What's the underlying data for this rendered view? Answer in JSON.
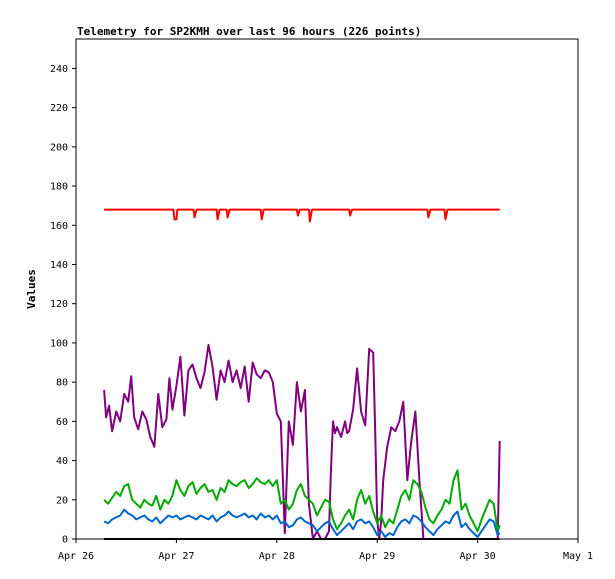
{
  "chart_data": {
    "type": "line",
    "title": "Telemetry for SP2KMH over last 96 hours (226 points)",
    "xlabel": "",
    "ylabel": "Values",
    "ylim": [
      0,
      255
    ],
    "yticks": [
      0,
      20,
      40,
      60,
      80,
      100,
      120,
      140,
      160,
      180,
      200,
      220,
      240
    ],
    "xlim": [
      0,
      5
    ],
    "xticks": [
      0,
      1,
      2,
      3,
      4,
      5
    ],
    "xtick_labels": [
      "Apr 26",
      "Apr 27",
      "Apr 28",
      "Apr 29",
      "Apr 30",
      "May 1"
    ],
    "grid": false,
    "legend": "none",
    "series": [
      {
        "color": "#ff0000",
        "x": [
          0.28,
          0.97,
          0.98,
          1.0,
          1.01,
          1.17,
          1.18,
          1.2,
          1.4,
          1.41,
          1.43,
          1.5,
          1.51,
          1.53,
          1.84,
          1.85,
          1.87,
          2.2,
          2.21,
          2.23,
          2.32,
          2.33,
          2.35,
          2.72,
          2.73,
          2.75,
          3.5,
          3.51,
          3.53,
          3.67,
          3.68,
          3.7,
          4.22
        ],
        "y": [
          168,
          168,
          163,
          163,
          168,
          168,
          164,
          168,
          168,
          163,
          168,
          168,
          164,
          168,
          168,
          163,
          168,
          168,
          165,
          168,
          168,
          162,
          168,
          168,
          165,
          168,
          168,
          164,
          168,
          168,
          163,
          168,
          168
        ]
      },
      {
        "color": "#800080",
        "x": [
          0.28,
          0.3,
          0.33,
          0.36,
          0.4,
          0.44,
          0.48,
          0.52,
          0.55,
          0.58,
          0.62,
          0.66,
          0.7,
          0.74,
          0.78,
          0.82,
          0.86,
          0.9,
          0.93,
          0.96,
          1.0,
          1.04,
          1.08,
          1.12,
          1.16,
          1.2,
          1.24,
          1.28,
          1.32,
          1.36,
          1.4,
          1.44,
          1.48,
          1.52,
          1.56,
          1.6,
          1.64,
          1.68,
          1.72,
          1.76,
          1.8,
          1.84,
          1.88,
          1.92,
          1.96,
          2.0,
          2.04,
          2.08,
          2.12,
          2.16,
          2.2,
          2.24,
          2.28,
          2.32,
          2.36,
          2.4,
          2.44,
          2.48,
          2.52,
          2.54,
          2.56,
          2.58,
          2.6,
          2.64,
          2.68,
          2.7,
          2.72,
          2.76,
          2.8,
          2.84,
          2.88,
          2.92,
          2.96,
          2.98,
          3.0,
          3.02,
          3.04,
          3.06,
          3.1,
          3.14,
          3.18,
          3.22,
          3.26,
          3.3,
          3.34,
          3.38,
          3.42,
          3.46,
          3.5,
          3.54,
          3.58,
          3.6,
          3.62,
          3.66,
          3.7,
          3.74,
          3.78,
          3.82,
          3.86,
          3.9,
          3.92,
          3.94,
          3.98,
          4.02,
          4.06,
          4.1,
          4.14,
          4.18,
          4.2,
          4.22
        ],
        "y": [
          76,
          62,
          68,
          55,
          65,
          60,
          74,
          70,
          83,
          62,
          56,
          65,
          61,
          52,
          47,
          74,
          57,
          61,
          82,
          66,
          78,
          93,
          63,
          86,
          89,
          82,
          77,
          85,
          99,
          88,
          71,
          86,
          80,
          91,
          80,
          86,
          77,
          88,
          70,
          90,
          84,
          82,
          86,
          85,
          80,
          64,
          60,
          3,
          60,
          48,
          80,
          65,
          76,
          18,
          0,
          4,
          0,
          0,
          4,
          36,
          60,
          54,
          57,
          52,
          60,
          54,
          55,
          66,
          87,
          65,
          58,
          97,
          95,
          55,
          10,
          0,
          9,
          30,
          47,
          57,
          55,
          60,
          70,
          30,
          50,
          65,
          30,
          0,
          0,
          0,
          0,
          0,
          0,
          0,
          0,
          0,
          0,
          0,
          0,
          0,
          0,
          0,
          0,
          0,
          0,
          0,
          0,
          0,
          0,
          50
        ]
      },
      {
        "color": "#00aa00",
        "x": [
          0.28,
          0.32,
          0.36,
          0.4,
          0.44,
          0.48,
          0.52,
          0.56,
          0.6,
          0.64,
          0.68,
          0.72,
          0.76,
          0.8,
          0.84,
          0.88,
          0.92,
          0.96,
          1.0,
          1.04,
          1.08,
          1.12,
          1.16,
          1.2,
          1.24,
          1.28,
          1.32,
          1.36,
          1.4,
          1.44,
          1.48,
          1.52,
          1.56,
          1.6,
          1.64,
          1.68,
          1.72,
          1.76,
          1.8,
          1.84,
          1.88,
          1.92,
          1.96,
          2.0,
          2.04,
          2.08,
          2.12,
          2.16,
          2.2,
          2.24,
          2.28,
          2.32,
          2.36,
          2.4,
          2.44,
          2.48,
          2.52,
          2.56,
          2.6,
          2.64,
          2.68,
          2.72,
          2.76,
          2.8,
          2.84,
          2.88,
          2.92,
          2.96,
          3.0,
          3.04,
          3.08,
          3.12,
          3.16,
          3.2,
          3.24,
          3.28,
          3.32,
          3.36,
          3.4,
          3.44,
          3.48,
          3.52,
          3.56,
          3.6,
          3.64,
          3.68,
          3.72,
          3.76,
          3.8,
          3.84,
          3.88,
          3.92,
          3.96,
          4.0,
          4.04,
          4.08,
          4.12,
          4.16,
          4.2,
          4.22
        ],
        "y": [
          20,
          18,
          21,
          24,
          22,
          27,
          28,
          20,
          18,
          16,
          20,
          18,
          17,
          22,
          15,
          20,
          18,
          22,
          30,
          25,
          22,
          27,
          29,
          23,
          26,
          28,
          24,
          25,
          20,
          26,
          24,
          30,
          28,
          27,
          29,
          30,
          26,
          28,
          31,
          29,
          28,
          30,
          27,
          30,
          18,
          20,
          15,
          18,
          25,
          28,
          22,
          20,
          18,
          12,
          16,
          20,
          19,
          10,
          5,
          8,
          12,
          15,
          10,
          20,
          25,
          18,
          22,
          14,
          8,
          12,
          6,
          10,
          8,
          15,
          22,
          25,
          20,
          30,
          28,
          24,
          16,
          10,
          8,
          12,
          15,
          20,
          18,
          30,
          35,
          15,
          18,
          12,
          8,
          4,
          10,
          15,
          20,
          18,
          4,
          7
        ]
      },
      {
        "color": "#0066cc",
        "x": [
          0.28,
          0.32,
          0.36,
          0.4,
          0.44,
          0.48,
          0.52,
          0.56,
          0.6,
          0.64,
          0.68,
          0.72,
          0.76,
          0.8,
          0.84,
          0.88,
          0.92,
          0.96,
          1.0,
          1.04,
          1.08,
          1.12,
          1.16,
          1.2,
          1.24,
          1.28,
          1.32,
          1.36,
          1.4,
          1.44,
          1.48,
          1.52,
          1.56,
          1.6,
          1.64,
          1.68,
          1.72,
          1.76,
          1.8,
          1.84,
          1.88,
          1.92,
          1.96,
          2.0,
          2.04,
          2.08,
          2.12,
          2.16,
          2.2,
          2.24,
          2.28,
          2.32,
          2.36,
          2.4,
          2.44,
          2.48,
          2.52,
          2.56,
          2.6,
          2.64,
          2.68,
          2.72,
          2.76,
          2.8,
          2.84,
          2.88,
          2.92,
          2.96,
          3.0,
          3.04,
          3.08,
          3.12,
          3.16,
          3.2,
          3.24,
          3.28,
          3.32,
          3.36,
          3.4,
          3.44,
          3.48,
          3.52,
          3.56,
          3.6,
          3.64,
          3.68,
          3.72,
          3.76,
          3.8,
          3.84,
          3.88,
          3.92,
          3.96,
          4.0,
          4.04,
          4.08,
          4.12,
          4.16,
          4.2,
          4.22
        ],
        "y": [
          9,
          8,
          10,
          11,
          12,
          15,
          13,
          12,
          10,
          11,
          12,
          10,
          9,
          11,
          8,
          10,
          12,
          11,
          12,
          10,
          11,
          12,
          11,
          10,
          12,
          11,
          10,
          12,
          9,
          11,
          12,
          14,
          12,
          11,
          12,
          13,
          11,
          12,
          10,
          13,
          11,
          12,
          10,
          12,
          8,
          9,
          6,
          7,
          10,
          11,
          9,
          8,
          7,
          4,
          6,
          8,
          9,
          5,
          2,
          4,
          6,
          8,
          5,
          9,
          10,
          8,
          9,
          6,
          2,
          4,
          1,
          3,
          2,
          6,
          9,
          10,
          8,
          12,
          11,
          9,
          6,
          4,
          2,
          5,
          7,
          9,
          8,
          12,
          14,
          6,
          8,
          5,
          3,
          1,
          4,
          7,
          10,
          9,
          2,
          3
        ]
      },
      {
        "color": "#000000",
        "x": [
          0.28,
          4.22
        ],
        "y": [
          0,
          0
        ]
      }
    ]
  }
}
